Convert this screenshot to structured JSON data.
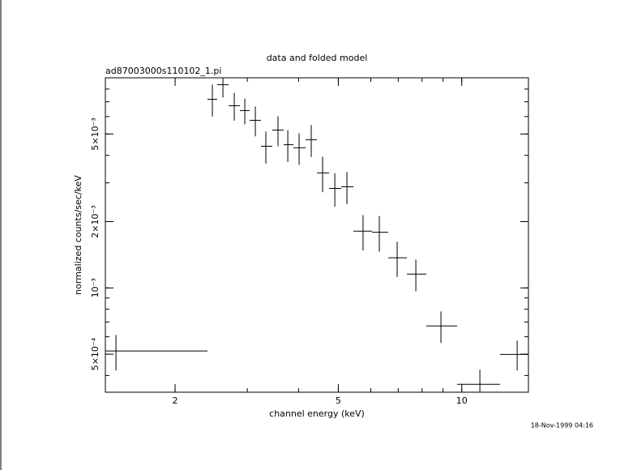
{
  "chart_data": {
    "type": "errorbar",
    "title": "data and folded model",
    "subtitle": "ad87003000s110102_1.pi",
    "x_label": "channel energy (keV)",
    "y_label": "normalized counts/sec/keV",
    "timestamp": "18-Nov-1999 04:16",
    "x": [
      1.435,
      2.465,
      2.616,
      2.788,
      2.958,
      3.138,
      3.329,
      3.564,
      3.765,
      4.012,
      4.295,
      4.578,
      4.903,
      5.248,
      5.745,
      6.295,
      6.958,
      7.727,
      8.897,
      11.07,
      13.65
    ],
    "x_low": [
      1.352,
      2.399,
      2.533,
      2.701,
      2.878,
      3.04,
      3.239,
      3.452,
      3.68,
      3.886,
      4.16,
      4.435,
      4.749,
      5.084,
      5.442,
      6.041,
      6.618,
      7.347,
      8.197,
      9.743,
      12.4
    ],
    "x_high": [
      2.399,
      2.533,
      2.701,
      2.878,
      3.04,
      3.239,
      3.452,
      3.68,
      3.886,
      4.16,
      4.435,
      4.749,
      5.084,
      5.442,
      6.041,
      6.618,
      7.347,
      8.197,
      9.743,
      12.4,
      14.54
    ],
    "y": [
      0.000517,
      0.00719,
      0.00837,
      0.00672,
      0.00639,
      0.00577,
      0.0044,
      0.00521,
      0.00447,
      0.00433,
      0.00471,
      0.00333,
      0.00283,
      0.00288,
      0.00181,
      0.00179,
      0.00137,
      0.001155,
      0.000672,
      0.000365,
      0.000499
    ],
    "y_err": [
      9.5e-05,
      0.00119,
      0.00105,
      0.00097,
      0.00086,
      0.00089,
      0.00073,
      0.00081,
      0.00074,
      0.00071,
      0.00078,
      0.00061,
      0.00049,
      0.00048,
      0.00033,
      0.00033,
      0.00025,
      0.00019,
      0.00011,
      6e-05,
      7.7e-05
    ],
    "color": "#000000",
    "x_log": true,
    "y_log": true,
    "xlim": [
      1.352,
      14.54
    ],
    "ylim": [
      0.000336,
      0.009
    ],
    "xticks": [
      2,
      5,
      10
    ],
    "xminorticks": [
      2,
      3,
      4,
      5,
      6,
      7,
      8,
      9,
      10
    ],
    "yticks": [
      {
        "value": 0.0005,
        "label": "5×10⁻⁴"
      },
      {
        "value": 0.001,
        "label": "10⁻³"
      },
      {
        "value": 0.002,
        "label": "2×10⁻³"
      },
      {
        "value": 0.005,
        "label": "5×10⁻³"
      }
    ],
    "yminorticks": [
      0.0004,
      0.0005,
      0.0006,
      0.0007,
      0.0008,
      0.0009,
      0.001,
      0.002,
      0.003,
      0.004,
      0.005,
      0.006,
      0.007,
      0.008
    ]
  }
}
